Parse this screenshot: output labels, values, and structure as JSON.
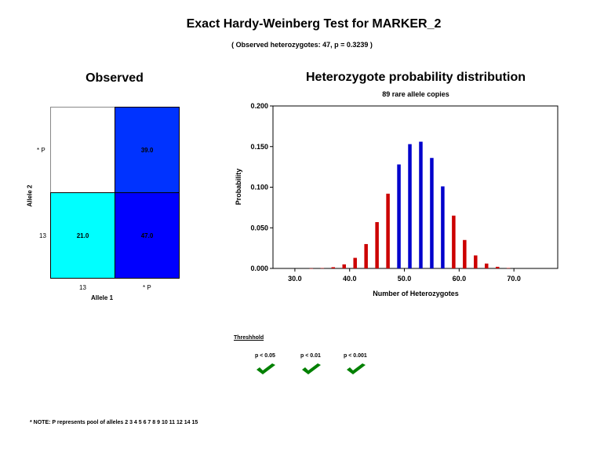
{
  "header": {
    "title": "Exact Hardy-Weinberg Test  for MARKER_2",
    "subtitle": "( Observed heterozygotes: 47, p = 0.3239 )"
  },
  "observed": {
    "title": "Observed",
    "row_labels": [
      "* P",
      "13"
    ],
    "col_labels": [
      "13",
      "* P"
    ],
    "ylabel": "Allele 2",
    "xlabel": "Allele 1",
    "cells": [
      {
        "value": "",
        "color": "#ffffff"
      },
      {
        "value": "39.0",
        "color": "#0033ff"
      },
      {
        "value": "21.0",
        "color": "#00ffff"
      },
      {
        "value": "47.0",
        "color": "#0000ff"
      }
    ]
  },
  "chart_data": {
    "type": "bar",
    "title": "Heterozygote probability distribution",
    "subtitle": "89 rare allele copies",
    "xlabel": "Number of Heterozygotes",
    "ylabel": "Probability",
    "xlim": [
      26,
      78
    ],
    "ylim": [
      0,
      0.2
    ],
    "xticks": [
      30.0,
      40.0,
      50.0,
      60.0,
      70.0
    ],
    "xtick_labels": [
      "30.0",
      "40.0",
      "50.0",
      "60.0",
      "70.0"
    ],
    "yticks": [
      0,
      0.05,
      0.1,
      0.15,
      0.2
    ],
    "ytick_labels": [
      "0.000",
      "0.050",
      "0.100",
      "0.150",
      "0.200"
    ],
    "bars": [
      {
        "x": 33,
        "y": 0.0001,
        "color": "#cc0000"
      },
      {
        "x": 35,
        "y": 0.0004,
        "color": "#cc0000"
      },
      {
        "x": 37,
        "y": 0.0015,
        "color": "#cc0000"
      },
      {
        "x": 39,
        "y": 0.005,
        "color": "#cc0000"
      },
      {
        "x": 41,
        "y": 0.013,
        "color": "#cc0000"
      },
      {
        "x": 43,
        "y": 0.03,
        "color": "#cc0000"
      },
      {
        "x": 45,
        "y": 0.057,
        "color": "#cc0000"
      },
      {
        "x": 47,
        "y": 0.092,
        "color": "#cc0000"
      },
      {
        "x": 49,
        "y": 0.128,
        "color": "#0000cc"
      },
      {
        "x": 51,
        "y": 0.153,
        "color": "#0000cc"
      },
      {
        "x": 53,
        "y": 0.156,
        "color": "#0000cc"
      },
      {
        "x": 55,
        "y": 0.136,
        "color": "#0000cc"
      },
      {
        "x": 57,
        "y": 0.101,
        "color": "#0000cc"
      },
      {
        "x": 59,
        "y": 0.065,
        "color": "#cc0000"
      },
      {
        "x": 61,
        "y": 0.035,
        "color": "#cc0000"
      },
      {
        "x": 63,
        "y": 0.016,
        "color": "#cc0000"
      },
      {
        "x": 65,
        "y": 0.006,
        "color": "#cc0000"
      },
      {
        "x": 67,
        "y": 0.002,
        "color": "#cc0000"
      },
      {
        "x": 69,
        "y": 0.0005,
        "color": "#cc0000"
      }
    ]
  },
  "threshold": {
    "label": "Threshhold",
    "items": [
      {
        "label": "p < 0.05"
      },
      {
        "label": "p < 0.01"
      },
      {
        "label": "p < 0.001"
      }
    ],
    "check_color": "#008000"
  },
  "note": "*  NOTE:  P represents pool of alleles 2 3 4 5 6 7 8 9 10 11 12 14 15"
}
